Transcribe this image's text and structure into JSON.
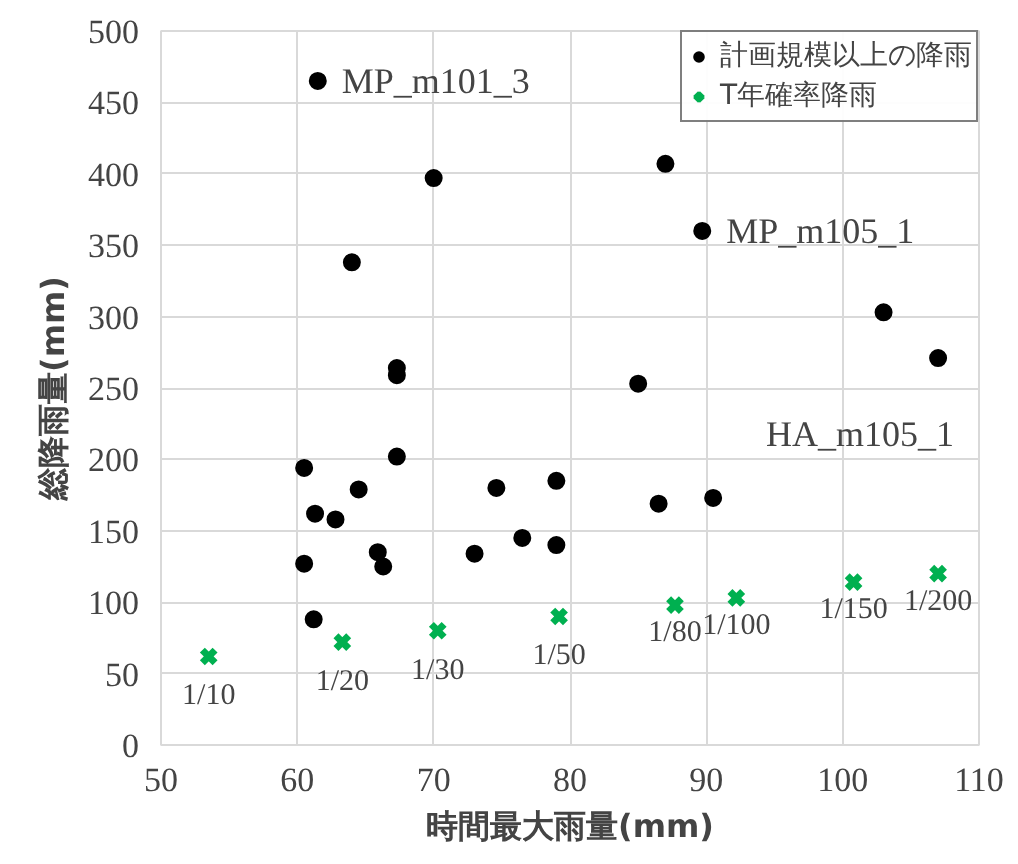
{
  "chart_data": {
    "type": "scatter",
    "xlabel": "時間最大雨量(mm)",
    "ylabel": "総降雨量(mm)",
    "xlim": [
      50,
      110
    ],
    "ylim": [
      0,
      500
    ],
    "xticks": [
      50,
      60,
      70,
      80,
      90,
      100,
      110
    ],
    "yticks": [
      0,
      50,
      100,
      150,
      200,
      250,
      300,
      350,
      400,
      450,
      500
    ],
    "grid": true,
    "legend": "top right",
    "series": [
      {
        "name": "計画規模以上の降雨",
        "color": "#000000",
        "marker": "circle",
        "x": [
          61.5,
          70,
          64,
          67.3,
          67.3,
          67.3,
          60.5,
          61.3,
          62.8,
          64.5,
          60.5,
          65.9,
          66.3,
          61.2,
          73,
          74.6,
          76.5,
          79,
          79,
          87,
          89.7,
          103,
          107,
          85,
          86.5,
          90.5
        ],
        "values": [
          465,
          397,
          338,
          264,
          259,
          202,
          194,
          162,
          158,
          179,
          127,
          135,
          125,
          88,
          134,
          180,
          145,
          185,
          140,
          407,
          360,
          303,
          271,
          253,
          169,
          173
        ]
      },
      {
        "name": "T年確率降雨",
        "color": "#00b050",
        "marker": "cross",
        "x": [
          53.5,
          63.3,
          70.3,
          79.2,
          87.7,
          92.2,
          100.8,
          107
        ],
        "values": [
          62,
          72,
          80,
          90,
          98,
          103,
          114,
          120
        ]
      }
    ],
    "annotations": [
      {
        "text": "MP_m101_3",
        "x": 61.5,
        "y": 465
      },
      {
        "text": "MP_m105_1",
        "x": 89.7,
        "y": 360
      },
      {
        "text": "HA_m105_1",
        "x": 107,
        "y": 271
      },
      {
        "text": "1/10",
        "x": 53.5,
        "y": 62
      },
      {
        "text": "1/20",
        "x": 63.3,
        "y": 72
      },
      {
        "text": "1/30",
        "x": 70.3,
        "y": 80
      },
      {
        "text": "1/50",
        "x": 79.2,
        "y": 90
      },
      {
        "text": "1/80",
        "x": 87.7,
        "y": 98
      },
      {
        "text": "1/100",
        "x": 92.2,
        "y": 103
      },
      {
        "text": "1/150",
        "x": 100.8,
        "y": 114
      },
      {
        "text": "1/200",
        "x": 107,
        "y": 120
      }
    ]
  }
}
